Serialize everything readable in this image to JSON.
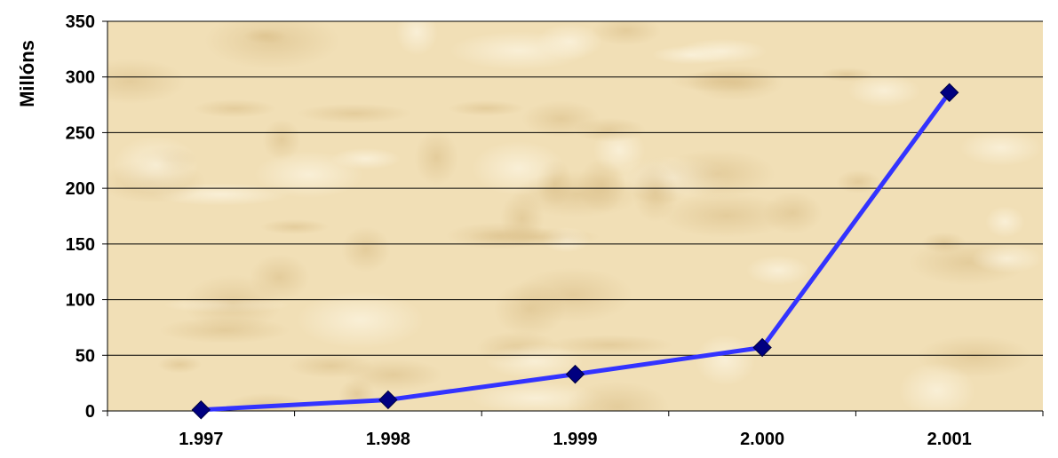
{
  "chart_data": {
    "type": "line",
    "ylabel": "Millóns",
    "xlabel": "",
    "categories": [
      "1.997",
      "1.998",
      "1.999",
      "2.000",
      "2.001"
    ],
    "series": [
      {
        "values": [
          1,
          10,
          33,
          57,
          286
        ],
        "color": "#3333ff",
        "marker_color": "#000080",
        "marker": "diamond"
      }
    ],
    "ylim": [
      0,
      350
    ],
    "yticks": [
      "0",
      "50",
      "100",
      "150",
      "200",
      "250",
      "300",
      "350"
    ],
    "grid": true,
    "background": "parchment texture",
    "legend": "none"
  }
}
